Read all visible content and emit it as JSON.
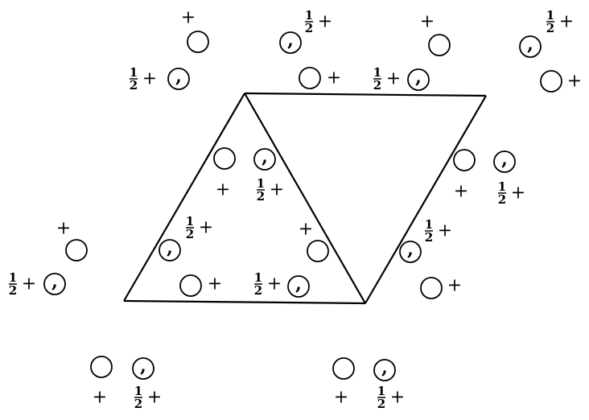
{
  "symbols": {
    "plus": "+",
    "half_numerator": "1",
    "half_denominator": "2",
    "comma": ","
  },
  "diagram": {
    "type": "space-group symmetry diagram",
    "cell": "hexagonal (rhombic unit cell)",
    "line_color": "#000000",
    "background": "#ffffff"
  }
}
